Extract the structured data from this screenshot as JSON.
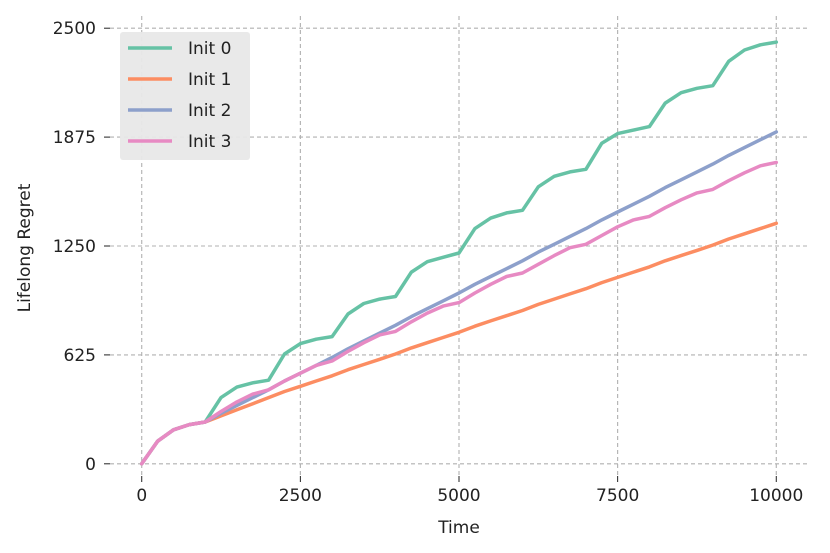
{
  "chart_data": {
    "type": "line",
    "xlabel": "Time",
    "ylabel": "Lifelong Regret",
    "xlim": [
      -500,
      10500
    ],
    "ylim": [
      -70,
      2570
    ],
    "xticks": [
      0,
      2500,
      5000,
      7500,
      10000
    ],
    "xtick_labels": [
      "0",
      "2500",
      "5000",
      "7500",
      "10000"
    ],
    "yticks": [
      0,
      625,
      1250,
      1875,
      2500
    ],
    "ytick_labels": [
      "0",
      "625",
      "1250",
      "1875",
      "2500"
    ],
    "grid": true,
    "legend_position": "top-left",
    "series": [
      {
        "name": "Init 0",
        "color": "#66c2a5",
        "x": [
          0,
          250,
          500,
          750,
          1000,
          1250,
          1500,
          1750,
          2000,
          2250,
          2500,
          2750,
          3000,
          3250,
          3500,
          3750,
          4000,
          4250,
          4500,
          4750,
          5000,
          5250,
          5500,
          5750,
          6000,
          6250,
          6500,
          6750,
          7000,
          7250,
          7500,
          7750,
          8000,
          8250,
          8500,
          8750,
          9000,
          9250,
          9500,
          9750,
          10000
        ],
        "y": [
          0,
          130,
          195,
          225,
          240,
          380,
          440,
          465,
          480,
          630,
          690,
          715,
          730,
          860,
          920,
          945,
          960,
          1100,
          1160,
          1185,
          1210,
          1350,
          1410,
          1440,
          1455,
          1590,
          1650,
          1675,
          1690,
          1840,
          1895,
          1915,
          1935,
          2070,
          2130,
          2155,
          2170,
          2310,
          2375,
          2405,
          2420
        ]
      },
      {
        "name": "Init 1",
        "color": "#fc8d62",
        "x": [
          0,
          250,
          500,
          750,
          1000,
          1250,
          1500,
          1750,
          2000,
          2250,
          2500,
          2750,
          3000,
          3250,
          3500,
          3750,
          4000,
          4250,
          4500,
          4750,
          5000,
          5250,
          5500,
          5750,
          6000,
          6250,
          6500,
          6750,
          7000,
          7250,
          7500,
          7750,
          8000,
          8250,
          8500,
          8750,
          9000,
          9250,
          9500,
          9750,
          10000
        ],
        "y": [
          0,
          130,
          195,
          225,
          240,
          275,
          310,
          345,
          380,
          415,
          445,
          475,
          505,
          540,
          570,
          600,
          630,
          665,
          695,
          725,
          755,
          790,
          820,
          850,
          880,
          915,
          945,
          975,
          1005,
          1040,
          1070,
          1100,
          1130,
          1165,
          1195,
          1225,
          1255,
          1290,
          1320,
          1350,
          1380
        ]
      },
      {
        "name": "Init 2",
        "color": "#8da0cb",
        "x": [
          0,
          250,
          500,
          750,
          1000,
          1250,
          1500,
          1750,
          2000,
          2250,
          2500,
          2750,
          3000,
          3250,
          3500,
          3750,
          4000,
          4250,
          4500,
          4750,
          5000,
          5250,
          5500,
          5750,
          6000,
          6250,
          6500,
          6750,
          7000,
          7250,
          7500,
          7750,
          8000,
          8250,
          8500,
          8750,
          9000,
          9250,
          9500,
          9750,
          10000
        ],
        "y": [
          0,
          130,
          195,
          225,
          240,
          290,
          335,
          380,
          425,
          475,
          520,
          565,
          610,
          660,
          705,
          750,
          795,
          845,
          890,
          935,
          980,
          1030,
          1075,
          1120,
          1165,
          1215,
          1260,
          1305,
          1350,
          1400,
          1445,
          1490,
          1535,
          1585,
          1630,
          1675,
          1720,
          1770,
          1815,
          1860,
          1905
        ]
      },
      {
        "name": "Init 3",
        "color": "#e78ac3",
        "x": [
          0,
          250,
          500,
          750,
          1000,
          1250,
          1500,
          1750,
          2000,
          2250,
          2500,
          2750,
          3000,
          3250,
          3500,
          3750,
          4000,
          4250,
          4500,
          4750,
          5000,
          5250,
          5500,
          5750,
          6000,
          6250,
          6500,
          6750,
          7000,
          7250,
          7500,
          7750,
          8000,
          8250,
          8500,
          8750,
          9000,
          9250,
          9500,
          9750,
          10000
        ],
        "y": [
          0,
          130,
          195,
          225,
          240,
          300,
          355,
          400,
          425,
          475,
          520,
          565,
          590,
          645,
          695,
          740,
          760,
          815,
          865,
          905,
          925,
          980,
          1030,
          1075,
          1095,
          1145,
          1195,
          1240,
          1260,
          1310,
          1360,
          1400,
          1420,
          1470,
          1515,
          1555,
          1575,
          1625,
          1670,
          1710,
          1730
        ]
      }
    ]
  }
}
